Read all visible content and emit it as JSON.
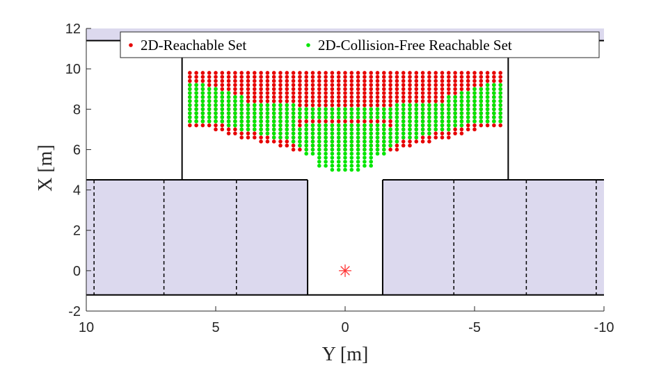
{
  "chart_data": {
    "type": "scatter",
    "title": "",
    "xlabel": "Y [m]",
    "ylabel": "X [m]",
    "xlim": [
      10,
      -10
    ],
    "ylim": [
      -2,
      12
    ],
    "x_reversed": true,
    "xticks": [
      "10",
      "5",
      "0",
      "-5",
      "-10"
    ],
    "yticks": [
      "-2",
      "0",
      "2",
      "4",
      "6",
      "8",
      "10",
      "12"
    ],
    "grid": false,
    "legend_position": "top",
    "legend": [
      "2D-Reachable Set",
      "2D-Collision-Free Reachable Set"
    ],
    "colors": {
      "reachable": "#e60000",
      "collision_free": "#00e600",
      "obstacle": "#dcd9ee",
      "marker": "#ff3333"
    },
    "grid_spacing": {
      "dx": 0.25,
      "dy": 0.2
    },
    "series": [
      {
        "name": "2D-Reachable Set",
        "rows": [
          {
            "x": 9.8,
            "y_range": [
              6.0,
              -6.0
            ]
          },
          {
            "x": 9.6,
            "y_range": [
              6.0,
              -6.0
            ]
          },
          {
            "x": 9.4,
            "y_range": [
              6.0,
              -6.0
            ]
          },
          {
            "x": 9.2,
            "y_range": [
              6.0,
              -6.0
            ]
          },
          {
            "x": 9.0,
            "y_range": [
              6.0,
              -6.0
            ]
          },
          {
            "x": 8.8,
            "y_range": [
              6.0,
              -6.0
            ]
          },
          {
            "x": 8.6,
            "y_range": [
              6.0,
              -6.0
            ]
          },
          {
            "x": 8.4,
            "y_range": [
              6.0,
              -6.0
            ]
          },
          {
            "x": 8.2,
            "y_range": [
              6.0,
              -6.0
            ]
          },
          {
            "x": 8.0,
            "y_range": [
              6.0,
              -6.0
            ]
          },
          {
            "x": 7.8,
            "y_range": [
              6.0,
              -6.0
            ]
          },
          {
            "x": 7.6,
            "y_range": [
              6.0,
              -6.0
            ]
          },
          {
            "x": 7.4,
            "y_range": [
              6.0,
              -6.0
            ]
          },
          {
            "x": 7.2,
            "y_range": [
              6.0,
              -6.0
            ]
          },
          {
            "x": 7.0,
            "y_range": [
              5.0,
              -5.0
            ]
          },
          {
            "x": 6.8,
            "y_range": [
              4.5,
              -4.5
            ]
          },
          {
            "x": 6.6,
            "y_range": [
              4.0,
              -4.0
            ]
          },
          {
            "x": 6.4,
            "y_range": [
              3.25,
              -3.25
            ]
          },
          {
            "x": 6.2,
            "y_range": [
              2.5,
              -2.5
            ]
          },
          {
            "x": 6.0,
            "y_range": [
              2.0,
              -2.0
            ]
          }
        ]
      },
      {
        "name": "2D-Collision-Free Reachable Set",
        "rows": [
          {
            "x": 9.2,
            "y_range": [
              6.0,
              5.5
            ]
          },
          {
            "x": 9.2,
            "y_range": [
              -5.5,
              -6.0
            ]
          },
          {
            "x": 9.0,
            "y_range": [
              6.0,
              5.0
            ]
          },
          {
            "x": 9.0,
            "y_range": [
              -5.0,
              -6.0
            ]
          },
          {
            "x": 8.8,
            "y_range": [
              6.0,
              4.5
            ]
          },
          {
            "x": 8.8,
            "y_range": [
              -4.5,
              -6.0
            ]
          },
          {
            "x": 8.6,
            "y_range": [
              6.0,
              4.0
            ]
          },
          {
            "x": 8.6,
            "y_range": [
              -4.0,
              -6.0
            ]
          },
          {
            "x": 8.4,
            "y_range": [
              6.0,
              4.0
            ]
          },
          {
            "x": 8.4,
            "y_range": [
              -4.0,
              -6.0
            ]
          },
          {
            "x": 8.2,
            "y_range": [
              6.0,
              2.0
            ]
          },
          {
            "x": 8.2,
            "y_range": [
              -2.0,
              -6.0
            ]
          },
          {
            "x": 8.0,
            "y_range": [
              6.0,
              -6.0
            ]
          },
          {
            "x": 7.8,
            "y_range": [
              6.0,
              -6.0
            ]
          },
          {
            "x": 7.6,
            "y_range": [
              6.0,
              -6.0
            ]
          },
          {
            "x": 7.4,
            "y_range": [
              6.0,
              2.0
            ]
          },
          {
            "x": 7.4,
            "y_range": [
              -2.0,
              -6.0
            ]
          },
          {
            "x": 7.2,
            "y_range": [
              4.5,
              2.0
            ]
          },
          {
            "x": 7.2,
            "y_range": [
              1.5,
              -1.5
            ]
          },
          {
            "x": 7.2,
            "y_range": [
              -2.0,
              -4.5
            ]
          },
          {
            "x": 7.0,
            "y_range": [
              4.0,
              -4.0
            ]
          },
          {
            "x": 6.8,
            "y_range": [
              3.25,
              -3.25
            ]
          },
          {
            "x": 6.6,
            "y_range": [
              2.75,
              -2.75
            ]
          },
          {
            "x": 6.4,
            "y_range": [
              2.0,
              -2.0
            ]
          },
          {
            "x": 6.2,
            "y_range": [
              1.75,
              -1.75
            ]
          },
          {
            "x": 6.0,
            "y_range": [
              1.5,
              -1.5
            ]
          },
          {
            "x": 5.8,
            "y_range": [
              1.5,
              -1.5
            ]
          },
          {
            "x": 5.6,
            "y_range": [
              1.0,
              -1.0
            ]
          },
          {
            "x": 5.4,
            "y_range": [
              1.0,
              -1.0
            ]
          },
          {
            "x": 5.2,
            "y_range": [
              1.0,
              -1.0
            ]
          },
          {
            "x": 5.0,
            "y_range": [
              0.5,
              -0.5
            ]
          }
        ]
      }
    ],
    "start_marker": {
      "x": 0.0,
      "y": 0.0
    },
    "obstacles": [
      {
        "name": "top-strip",
        "x": [
          11.4,
          12.0
        ],
        "y": [
          10,
          -10
        ]
      },
      {
        "name": "left-parking-block",
        "x": [
          -1.2,
          4.5
        ],
        "y": [
          10,
          1.45
        ]
      },
      {
        "name": "right-parking-block",
        "x": [
          -1.2,
          4.5
        ],
        "y": [
          -1.45,
          -10
        ]
      }
    ],
    "walls": [
      {
        "from": {
          "y": 10,
          "x": 11.4
        },
        "to": {
          "y": -10,
          "x": 11.4
        }
      },
      {
        "from": {
          "y": 6.3,
          "x": 11.4
        },
        "to": {
          "y": 6.3,
          "x": 4.5
        }
      },
      {
        "from": {
          "y": -6.3,
          "x": 11.4
        },
        "to": {
          "y": -6.3,
          "x": 4.5
        }
      },
      {
        "from": {
          "y": 10,
          "x": 4.5
        },
        "to": {
          "y": 1.45,
          "x": 4.5
        }
      },
      {
        "from": {
          "y": 1.45,
          "x": 4.5
        },
        "to": {
          "y": 1.45,
          "x": -1.2
        }
      },
      {
        "from": {
          "y": -1.45,
          "x": 4.5
        },
        "to": {
          "y": -1.45,
          "x": -1.2
        }
      },
      {
        "from": {
          "y": -1.45,
          "x": 4.5
        },
        "to": {
          "y": -10,
          "x": 4.5
        }
      },
      {
        "from": {
          "y": 10,
          "x": -1.2
        },
        "to": {
          "y": -10,
          "x": -1.2
        }
      }
    ],
    "dividers_y": [
      9.7,
      7.0,
      4.2,
      -4.2,
      -7.0,
      -9.7
    ],
    "dividers_x_range": [
      -1.2,
      4.5
    ]
  }
}
